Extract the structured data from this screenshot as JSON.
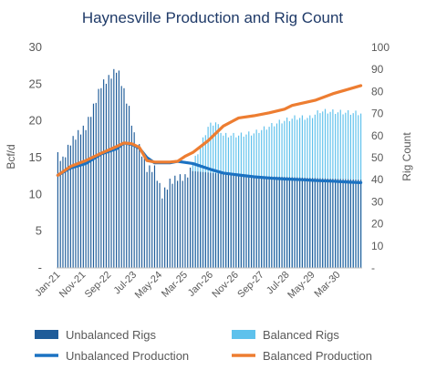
{
  "chart_data": {
    "type": "bar+line",
    "title": "Haynesville Production and Rig Count",
    "ylabel_left": "Bcf/d",
    "ylabel_right": "Rig Count",
    "ylim_left": [
      0,
      30
    ],
    "ylim_right": [
      0,
      100
    ],
    "left_ticks": [
      "-",
      "5",
      "10",
      "15",
      "20",
      "25",
      "30"
    ],
    "right_ticks": [
      "-",
      "10",
      "20",
      "30",
      "40",
      "50",
      "60",
      "70",
      "80",
      "90",
      "100"
    ],
    "x_start": "2021-01",
    "x_end": "2030-12",
    "x_tick_labels": [
      "Jan-21",
      "Nov-21",
      "Sep-22",
      "Jul-23",
      "May-24",
      "Mar-25",
      "Jan-26",
      "Nov-26",
      "Sep-27",
      "Jul-28",
      "May-29",
      "Mar-30"
    ],
    "colors": {
      "unbalanced_rigs": "#1f5c99",
      "balanced_rigs": "#5ec1ec",
      "unbalanced_production": "#1b72c2",
      "balanced_production": "#ed7d31",
      "title": "#1f3a68",
      "text": "#595959",
      "grid": "#d9d9d9"
    },
    "rig_anchors": [
      [
        "2021-01",
        51
      ],
      [
        "2021-03",
        49
      ],
      [
        "2021-06",
        57
      ],
      [
        "2021-09",
        61
      ],
      [
        "2021-12",
        64
      ],
      [
        "2022-03",
        73
      ],
      [
        "2022-06",
        83
      ],
      [
        "2022-09",
        86
      ],
      [
        "2022-12",
        90
      ],
      [
        "2023-01",
        88
      ],
      [
        "2023-03",
        80
      ],
      [
        "2023-05",
        72
      ],
      [
        "2023-07",
        60
      ],
      [
        "2023-10",
        52
      ],
      [
        "2023-12",
        45
      ],
      [
        "2024-03",
        45
      ],
      [
        "2024-06",
        33
      ],
      [
        "2024-09",
        39
      ],
      [
        "2024-12",
        41
      ],
      [
        "2025-03",
        41
      ],
      [
        "2025-05",
        44
      ],
      [
        "2026-12",
        42
      ],
      [
        "2030-12",
        40
      ]
    ],
    "balanced_rig_anchors": [
      [
        "2025-06",
        47
      ],
      [
        "2025-09",
        55
      ],
      [
        "2025-12",
        64
      ],
      [
        "2026-03",
        66
      ],
      [
        "2026-06",
        60
      ],
      [
        "2026-12",
        60
      ],
      [
        "2027-06",
        61
      ],
      [
        "2027-10",
        63
      ],
      [
        "2028-04",
        66
      ],
      [
        "2028-10",
        68
      ],
      [
        "2029-04",
        68
      ],
      [
        "2029-08",
        71
      ],
      [
        "2030-12",
        70
      ]
    ],
    "series": [
      {
        "name": "Unbalanced Rigs",
        "type": "bar",
        "axis": "right"
      },
      {
        "name": "Balanced Rigs",
        "type": "bar",
        "axis": "right"
      },
      {
        "name": "Unbalanced Production",
        "type": "line",
        "axis": "left",
        "points": [
          [
            "2021-01",
            12.6
          ],
          [
            "2021-06",
            13.6
          ],
          [
            "2021-12",
            14.2
          ],
          [
            "2022-06",
            15.5
          ],
          [
            "2022-12",
            16.2
          ],
          [
            "2023-03",
            17.0
          ],
          [
            "2023-06",
            16.8
          ],
          [
            "2023-09",
            16.3
          ],
          [
            "2023-12",
            15.0
          ],
          [
            "2024-03",
            14.3
          ],
          [
            "2024-06",
            14.3
          ],
          [
            "2024-09",
            14.3
          ],
          [
            "2024-12",
            14.5
          ],
          [
            "2025-06",
            14.2
          ],
          [
            "2026-01",
            13.4
          ],
          [
            "2026-06",
            12.9
          ],
          [
            "2027-01",
            12.6
          ],
          [
            "2027-06",
            12.4
          ],
          [
            "2028-01",
            12.2
          ],
          [
            "2028-06",
            12.1
          ],
          [
            "2029-01",
            12.0
          ],
          [
            "2029-06",
            11.9
          ],
          [
            "2030-01",
            11.8
          ],
          [
            "2030-06",
            11.7
          ],
          [
            "2030-12",
            11.6
          ]
        ]
      },
      {
        "name": "Balanced Production",
        "type": "line",
        "axis": "left",
        "points": [
          [
            "2021-01",
            12.6
          ],
          [
            "2021-06",
            13.8
          ],
          [
            "2021-12",
            14.6
          ],
          [
            "2022-06",
            15.6
          ],
          [
            "2022-12",
            16.5
          ],
          [
            "2023-03",
            17.0
          ],
          [
            "2023-06",
            16.9
          ],
          [
            "2023-09",
            16.4
          ],
          [
            "2023-12",
            14.6
          ],
          [
            "2024-03",
            14.4
          ],
          [
            "2024-06",
            14.4
          ],
          [
            "2024-09",
            14.4
          ],
          [
            "2024-12",
            14.5
          ],
          [
            "2025-03",
            15.2
          ],
          [
            "2025-06",
            15.7
          ],
          [
            "2025-12",
            17.3
          ],
          [
            "2026-06",
            19.3
          ],
          [
            "2026-12",
            20.4
          ],
          [
            "2027-06",
            20.7
          ],
          [
            "2027-12",
            21.1
          ],
          [
            "2028-06",
            21.6
          ],
          [
            "2028-09",
            22.1
          ],
          [
            "2029-06",
            22.8
          ],
          [
            "2030-01",
            23.7
          ],
          [
            "2030-06",
            24.2
          ],
          [
            "2030-12",
            24.8
          ]
        ]
      }
    ],
    "legend": {
      "placement": "bottom",
      "items": [
        {
          "label": "Unbalanced Rigs",
          "kind": "box",
          "color_key": "unbalanced_rigs"
        },
        {
          "label": "Balanced Rigs",
          "kind": "box",
          "color_key": "balanced_rigs"
        },
        {
          "label": "Unbalanced Production",
          "kind": "line",
          "color_key": "unbalanced_production"
        },
        {
          "label": "Balanced Production",
          "kind": "line",
          "color_key": "balanced_production"
        }
      ]
    },
    "grid": false
  }
}
